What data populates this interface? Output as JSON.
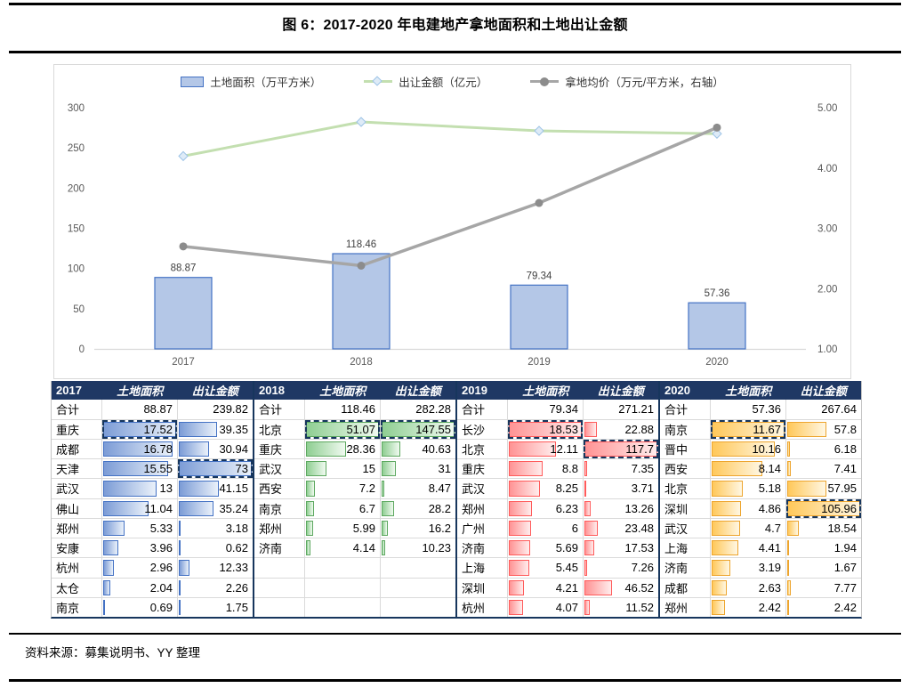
{
  "page": {
    "title": "图 6：2017-2020 年电建地产拿地面积和土地出让金额",
    "source": "资料来源：募集说明书、YY 整理"
  },
  "chart_data": {
    "type": "bar+line combo",
    "title": "图 6：2017-2020 年电建地产拿地面积和土地出让金额",
    "categories": [
      "2017",
      "2018",
      "2019",
      "2020"
    ],
    "series": [
      {
        "name": "土地面积（万平方米）",
        "type": "bar",
        "axis": "left",
        "values": [
          88.87,
          118.46,
          79.34,
          57.36
        ],
        "labels": [
          "88.87",
          "118.46",
          "79.34",
          "57.36"
        ],
        "fill": "#B4C7E7",
        "stroke": "#4472C4"
      },
      {
        "name": "出让金额（亿元）",
        "type": "line",
        "axis": "left",
        "values": [
          239.82,
          282.28,
          271.21,
          267.64
        ],
        "color": "#C3DFB0",
        "marker": "diamond",
        "marker_fill": "#DEEBF7",
        "marker_stroke": "#9DC3E6"
      },
      {
        "name": "拿地均价（万元/平方米，右轴）",
        "type": "line",
        "axis": "right",
        "values": [
          2.7,
          2.38,
          3.42,
          4.67
        ],
        "color": "#A6A6A6",
        "marker": "circle",
        "marker_fill": "#8C8C8C"
      }
    ],
    "left_axis": {
      "min": 0,
      "max": 300,
      "step": 50,
      "ticks": [
        "0",
        "50",
        "100",
        "150",
        "200",
        "250",
        "300"
      ]
    },
    "right_axis": {
      "min": 1,
      "max": 5,
      "step": 1,
      "ticks": [
        "1.00",
        "2.00",
        "3.00",
        "4.00",
        "5.00"
      ]
    },
    "grid": false,
    "legend_position": "top"
  },
  "table": {
    "groups": [
      {
        "year": "2017",
        "col_area": "土地面积",
        "col_amount": "出让金额",
        "max_area": 17.52,
        "max_amount": 73,
        "theme": {
          "border": "#4472C4",
          "from": "#7C9CD6",
          "to": "#EAF1FA"
        },
        "rows": [
          {
            "name": "合计",
            "area": "88.87",
            "amount": "239.82",
            "total": true
          },
          {
            "name": "重庆",
            "area": "17.52",
            "amount": "39.35",
            "area_dash": true
          },
          {
            "name": "成都",
            "area": "16.78",
            "amount": "30.94"
          },
          {
            "name": "天津",
            "area": "15.55",
            "amount": "73",
            "amount_dash": true
          },
          {
            "name": "武汉",
            "area": "13",
            "amount": "41.15"
          },
          {
            "name": "佛山",
            "area": "11.04",
            "amount": "35.24"
          },
          {
            "name": "郑州",
            "area": "5.33",
            "amount": "3.18"
          },
          {
            "name": "安康",
            "area": "3.96",
            "amount": "0.62"
          },
          {
            "name": "杭州",
            "area": "2.96",
            "amount": "12.33"
          },
          {
            "name": "太仓",
            "area": "2.04",
            "amount": "2.26"
          },
          {
            "name": "南京",
            "area": "0.69",
            "amount": "1.75"
          }
        ]
      },
      {
        "year": "2018",
        "col_area": "土地面积",
        "col_amount": "出让金额",
        "max_area": 51.07,
        "max_amount": 147.55,
        "theme": {
          "border": "#5DA860",
          "from": "#8FCE92",
          "to": "#F0FAF0"
        },
        "rows": [
          {
            "name": "合计",
            "area": "118.46",
            "amount": "282.28",
            "total": true
          },
          {
            "name": "北京",
            "area": "51.07",
            "amount": "147.55",
            "area_dash": true,
            "amount_dash": true
          },
          {
            "name": "重庆",
            "area": "28.36",
            "amount": "40.63"
          },
          {
            "name": "武汉",
            "area": "15",
            "amount": "31"
          },
          {
            "name": "西安",
            "area": "7.2",
            "amount": "8.47"
          },
          {
            "name": "南京",
            "area": "6.7",
            "amount": "28.2"
          },
          {
            "name": "郑州",
            "area": "5.99",
            "amount": "16.2"
          },
          {
            "name": "济南",
            "area": "4.14",
            "amount": "10.23"
          },
          {
            "name": "",
            "area": "",
            "amount": ""
          },
          {
            "name": "",
            "area": "",
            "amount": ""
          },
          {
            "name": "",
            "area": "",
            "amount": ""
          }
        ]
      },
      {
        "year": "2019",
        "col_area": "土地面积",
        "col_amount": "出让金额",
        "max_area": 18.53,
        "max_amount": 117.7,
        "theme": {
          "border": "#FF5B5B",
          "from": "#FF9394",
          "to": "#FFEDED"
        },
        "rows": [
          {
            "name": "合计",
            "area": "79.34",
            "amount": "271.21",
            "total": true
          },
          {
            "name": "长沙",
            "area": "18.53",
            "amount": "22.88",
            "area_dash": true
          },
          {
            "name": "北京",
            "area": "12.11",
            "amount": "117.7",
            "amount_dash": true
          },
          {
            "name": "重庆",
            "area": "8.8",
            "amount": "7.35"
          },
          {
            "name": "武汉",
            "area": "8.25",
            "amount": "3.71"
          },
          {
            "name": "郑州",
            "area": "6.23",
            "amount": "13.26"
          },
          {
            "name": "广州",
            "area": "6",
            "amount": "23.48"
          },
          {
            "name": "济南",
            "area": "5.69",
            "amount": "17.53"
          },
          {
            "name": "上海",
            "area": "5.45",
            "amount": "7.26"
          },
          {
            "name": "深圳",
            "area": "4.21",
            "amount": "46.52"
          },
          {
            "name": "杭州",
            "area": "4.07",
            "amount": "11.52"
          }
        ]
      },
      {
        "year": "2020",
        "col_area": "土地面积",
        "col_amount": "出让金额",
        "max_area": 11.67,
        "max_amount": 105.96,
        "theme": {
          "border": "#EDA52E",
          "from": "#FFC85A",
          "to": "#FFF7E3"
        },
        "rows": [
          {
            "name": "合计",
            "area": "57.36",
            "amount": "267.64",
            "total": true
          },
          {
            "name": "南京",
            "area": "11.67",
            "amount": "57.8",
            "area_dash": true
          },
          {
            "name": "晋中",
            "area": "10.16",
            "amount": "6.18"
          },
          {
            "name": "西安",
            "area": "8.14",
            "amount": "7.41"
          },
          {
            "name": "北京",
            "area": "5.18",
            "amount": "57.95"
          },
          {
            "name": "深圳",
            "area": "4.86",
            "amount": "105.96",
            "amount_dash": true
          },
          {
            "name": "武汉",
            "area": "4.7",
            "amount": "18.54"
          },
          {
            "name": "上海",
            "area": "4.41",
            "amount": "1.94"
          },
          {
            "name": "济南",
            "area": "3.19",
            "amount": "1.67"
          },
          {
            "name": "成都",
            "area": "2.63",
            "amount": "7.77"
          },
          {
            "name": "郑州",
            "area": "2.42",
            "amount": "2.42"
          }
        ]
      }
    ]
  }
}
